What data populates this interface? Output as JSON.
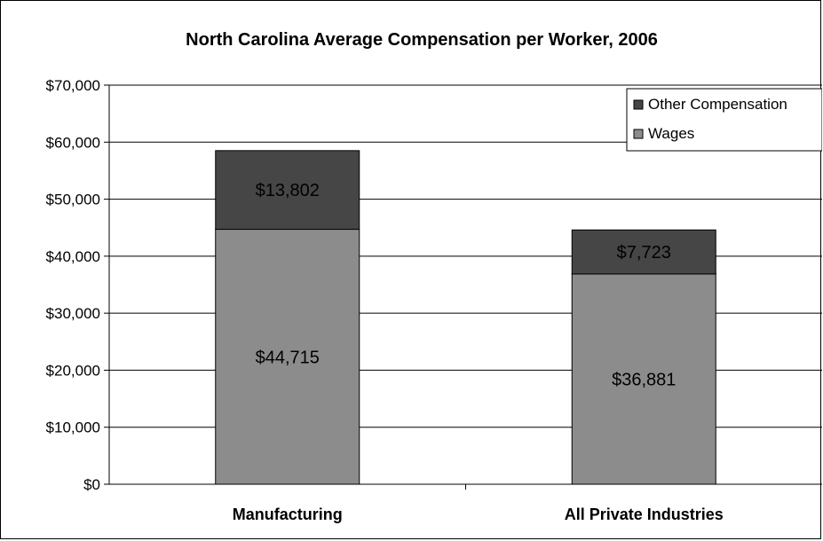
{
  "chart_data": {
    "type": "bar",
    "stacked": true,
    "title": "North Carolina Average Compensation per Worker, 2006",
    "categories": [
      "Manufacturing",
      "All Private Industries"
    ],
    "series": [
      {
        "name": "Wages",
        "values": [
          44715,
          36881
        ],
        "labels": [
          "$44,715",
          "$36,881"
        ],
        "color": "#8c8c8c"
      },
      {
        "name": "Other Compensation",
        "values": [
          13802,
          7723
        ],
        "labels": [
          "$13,802",
          "$7,723"
        ],
        "color": "#464646"
      }
    ],
    "legend_entries": [
      "Other Compensation",
      "Wages"
    ],
    "ylim": [
      0,
      70000
    ],
    "yticks": [
      0,
      10000,
      20000,
      30000,
      40000,
      50000,
      60000,
      70000
    ],
    "ytick_labels": [
      "$0",
      "$10,000",
      "$20,000",
      "$30,000",
      "$40,000",
      "$50,000",
      "$60,000",
      "$70,000"
    ],
    "xlabel": "",
    "ylabel": "",
    "grid": true,
    "legend_position": "top-right"
  }
}
